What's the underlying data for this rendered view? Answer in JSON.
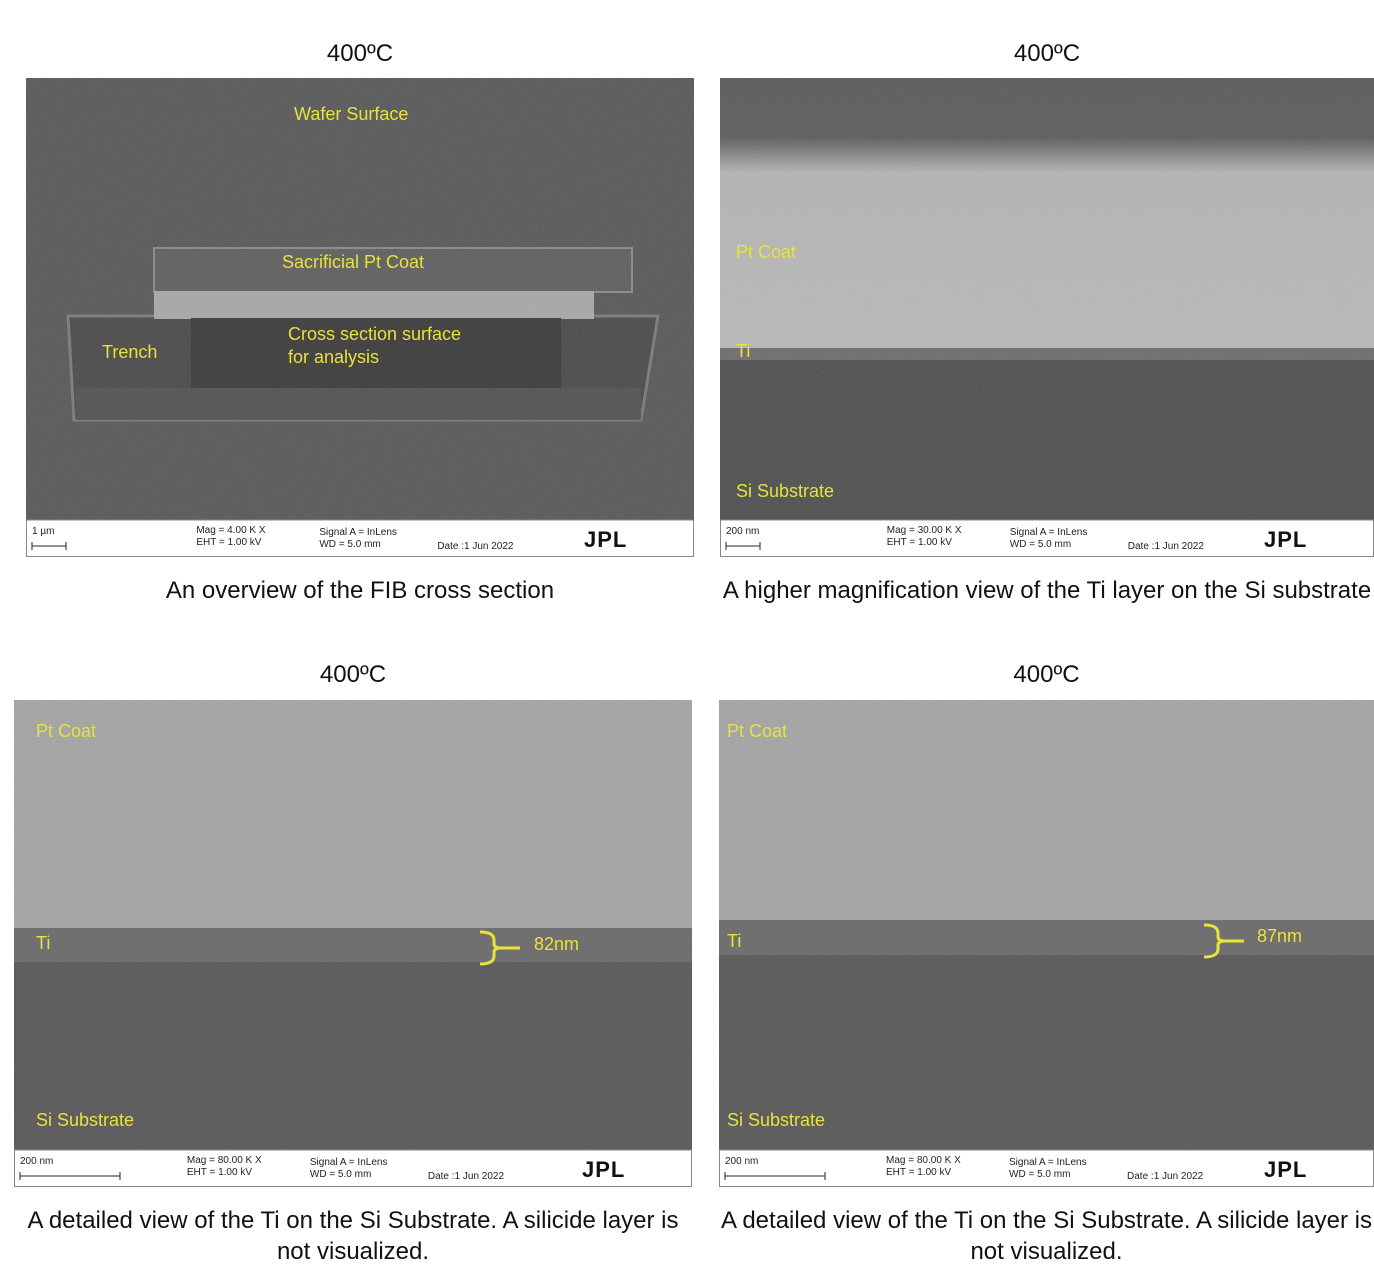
{
  "panels": [
    {
      "title": "400ºC",
      "labels": [
        "Wafer Surface",
        "Sacrificial Pt Coat",
        "Trench",
        "Cross section surface",
        "for analysis"
      ],
      "info": {
        "scale": "1 µm",
        "mag": "Mag =   4.00 K X",
        "eht": "EHT =  1.00 kV",
        "signal": "Signal A = InLens",
        "wd": "WD =  5.0 mm",
        "date": "Date :1 Jun 2022",
        "logo": "JPL"
      },
      "caption": "An overview of the FIB cross section"
    },
    {
      "title": "400ºC",
      "labels": [
        "Pt Coat",
        "Ti",
        "Si Substrate"
      ],
      "info": {
        "scale": "200 nm",
        "mag": "Mag =   30.00 K X",
        "eht": "EHT =  1.00 kV",
        "signal": "Signal A = InLens",
        "wd": "WD =  5.0 mm",
        "date": "Date :1 Jun 2022",
        "logo": "JPL"
      },
      "caption": "A higher magnification view of the Ti layer on the Si substrate"
    },
    {
      "title": "400ºC",
      "labels": [
        "Pt Coat",
        "Ti",
        "Si Substrate",
        "82nm"
      ],
      "info": {
        "scale": "200 nm",
        "mag": "Mag =   80.00 K X",
        "eht": "EHT =  1.00 kV",
        "signal": "Signal A = InLens",
        "wd": "WD =  5.0 mm",
        "date": "Date :1 Jun 2022",
        "logo": "JPL"
      },
      "caption": "A detailed view of the Ti on the Si Substrate. A silicide layer is not visualized."
    },
    {
      "title": "400ºC",
      "labels": [
        "Pt Coat",
        "Ti",
        "Si Substrate",
        "87nm"
      ],
      "info": {
        "scale": "200 nm",
        "mag": "Mag =   80.00 K X",
        "eht": "EHT =  1.00 kV",
        "signal": "Signal A = InLens",
        "wd": "WD =  5.0 mm",
        "date": "Date :1 Jun 2022",
        "logo": "JPL"
      },
      "caption": "A detailed view of the Ti on the Si Substrate. A silicide layer is not visualized."
    }
  ]
}
